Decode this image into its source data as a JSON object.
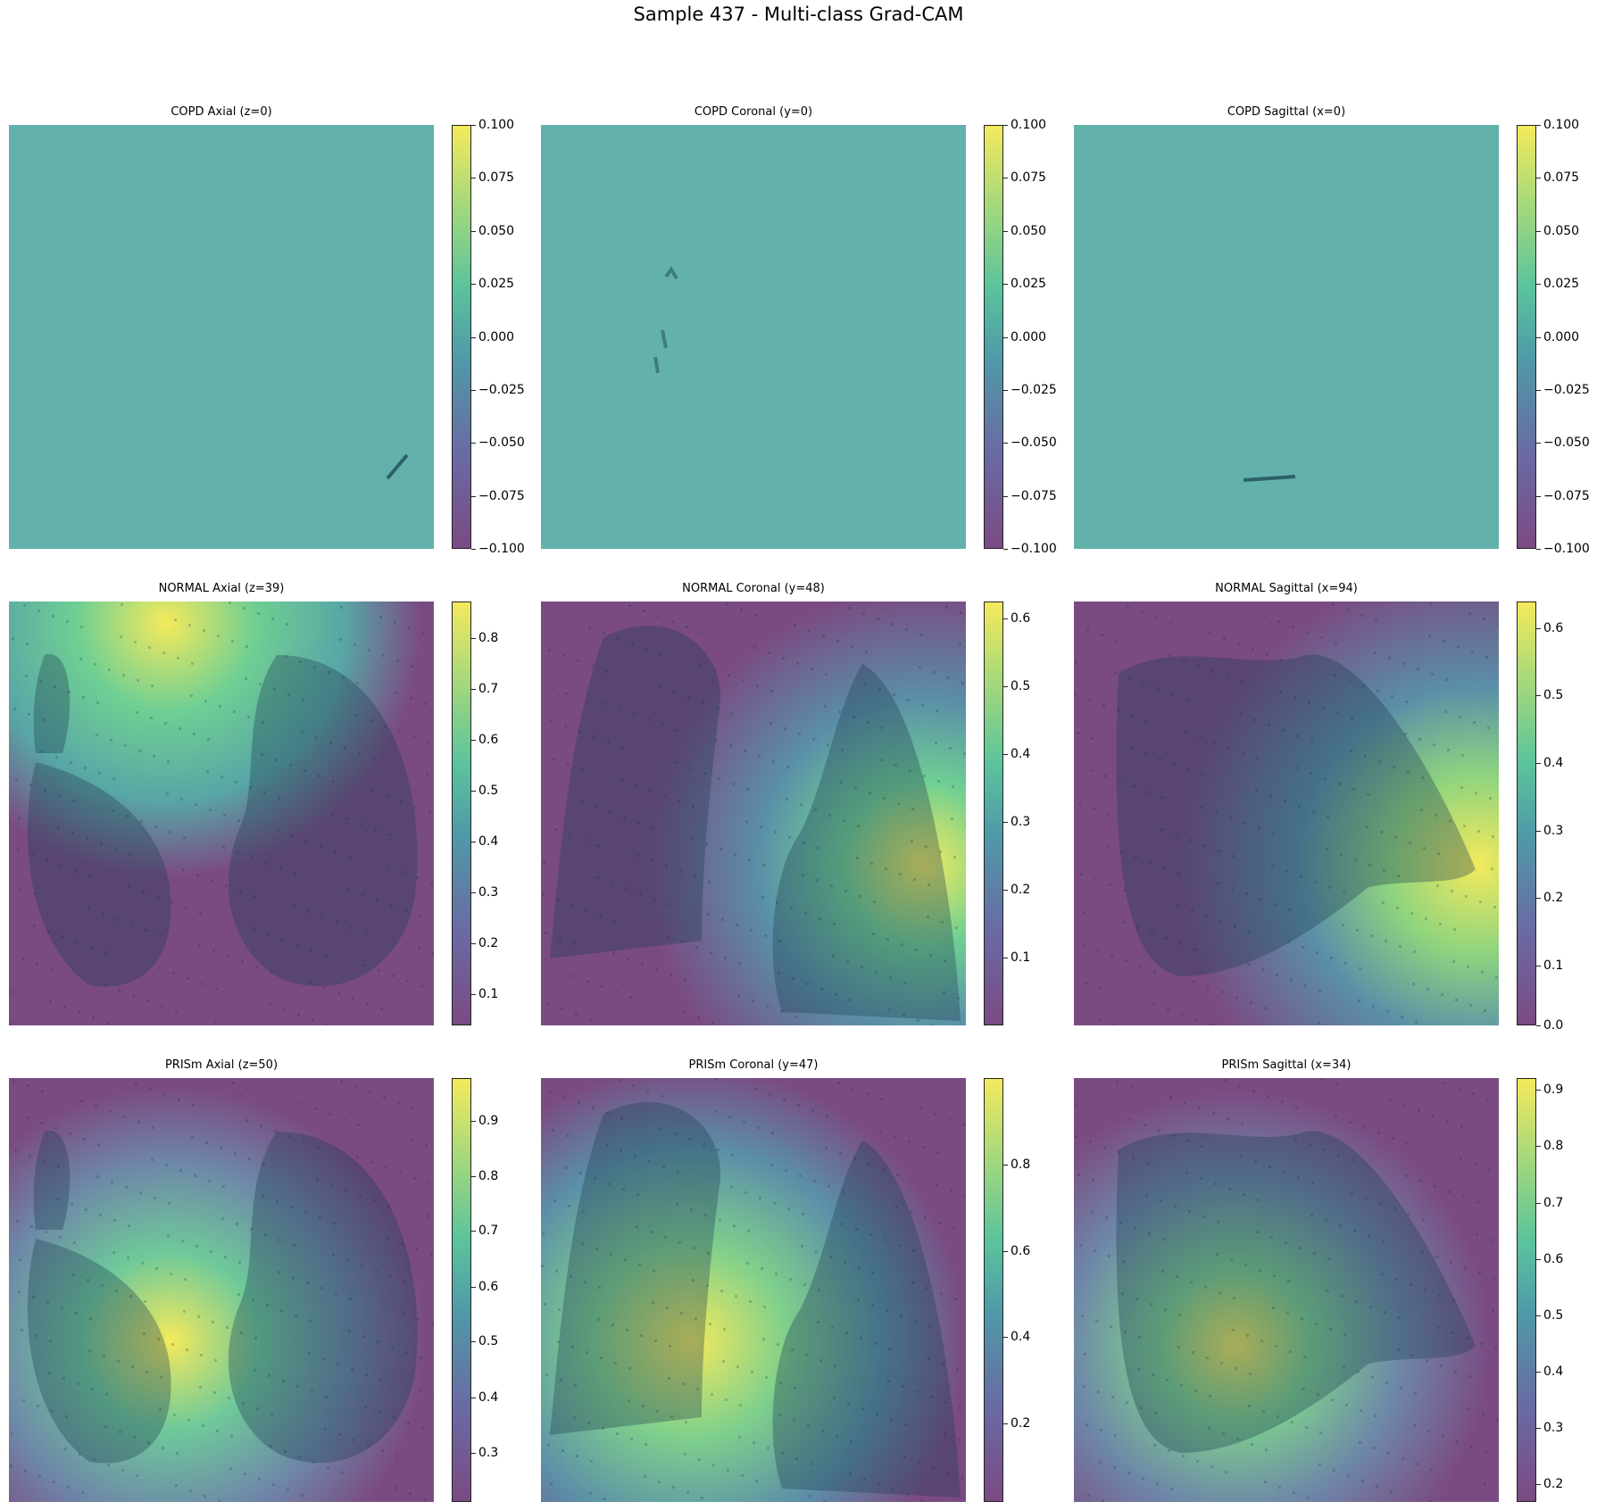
{
  "figure": {
    "title": "Sample 437 - Multi-class Grad-CAM"
  },
  "panels": [
    {
      "title": "COPD Axial (z=0)",
      "ticks": [
        "0.100",
        "0.075",
        "0.050",
        "0.025",
        "0.000",
        "−0.025",
        "−0.050",
        "−0.075",
        "−0.100"
      ]
    },
    {
      "title": "COPD Coronal (y=0)",
      "ticks": [
        "0.100",
        "0.075",
        "0.050",
        "0.025",
        "0.000",
        "−0.025",
        "−0.050",
        "−0.075",
        "−0.100"
      ]
    },
    {
      "title": "COPD Sagittal (x=0)",
      "ticks": [
        "0.100",
        "0.075",
        "0.050",
        "0.025",
        "0.000",
        "−0.025",
        "−0.050",
        "−0.075",
        "−0.100"
      ]
    },
    {
      "title": "NORMAL Axial (z=39)",
      "ticks": [
        "0.8",
        "0.7",
        "0.6",
        "0.5",
        "0.4",
        "0.3",
        "0.2",
        "0.1"
      ]
    },
    {
      "title": "NORMAL Coronal (y=48)",
      "ticks": [
        "0.6",
        "0.5",
        "0.4",
        "0.3",
        "0.2",
        "0.1"
      ]
    },
    {
      "title": "NORMAL Sagittal (x=94)",
      "ticks": [
        "0.6",
        "0.5",
        "0.4",
        "0.3",
        "0.2",
        "0.1",
        "0.0"
      ]
    },
    {
      "title": "PRISm Axial (z=50)",
      "ticks": [
        "0.9",
        "0.8",
        "0.7",
        "0.6",
        "0.5",
        "0.4",
        "0.3"
      ]
    },
    {
      "title": "PRISm Coronal (y=47)",
      "ticks": [
        "0.8",
        "0.6",
        "0.4",
        "0.2"
      ]
    },
    {
      "title": "PRISm Sagittal (x=34)",
      "ticks": [
        "0.9",
        "0.8",
        "0.7",
        "0.6",
        "0.5",
        "0.4",
        "0.3",
        "0.2"
      ]
    }
  ]
}
